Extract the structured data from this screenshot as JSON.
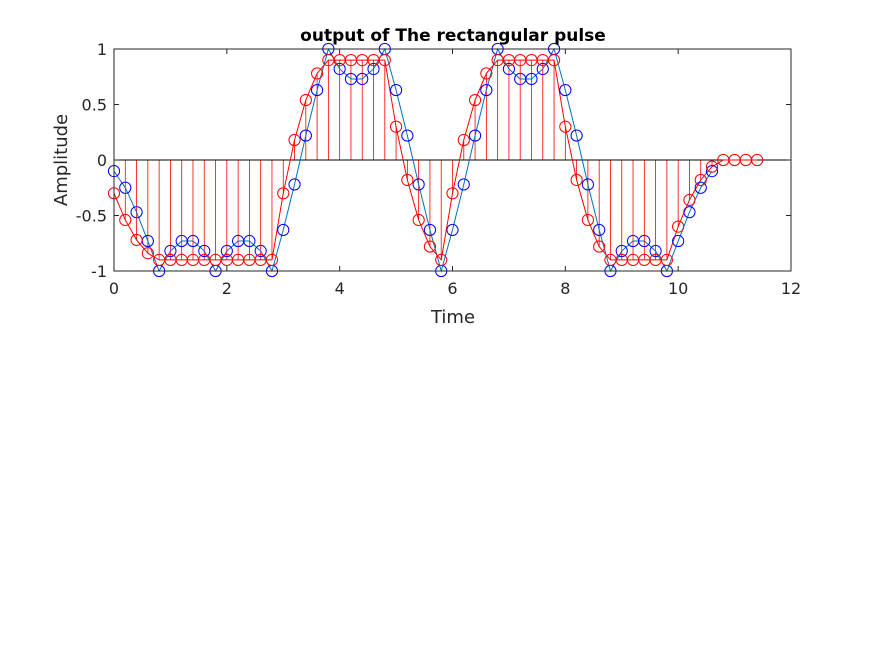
{
  "chart_data": {
    "type": "line",
    "title": "output of The rectangular pulse",
    "xlabel": "Time",
    "ylabel": "Amplitude",
    "xlim": [
      0,
      12
    ],
    "ylim": [
      -1,
      1
    ],
    "xticks": [
      "0",
      "2",
      "4",
      "6",
      "8",
      "10",
      "12"
    ],
    "yticks": [
      "-1",
      "-0.5",
      "0",
      "0.5",
      "1"
    ],
    "grid": false,
    "legend": "none",
    "series": [
      {
        "style": "line-with-circle-markers",
        "line_color": "#0072bd",
        "marker_color": "#0000ff",
        "x": [
          0,
          0.2,
          0.4,
          0.6,
          0.8,
          1.0,
          1.2,
          1.4,
          1.6,
          1.8,
          2.0,
          2.2,
          2.4,
          2.6,
          2.8,
          3.0,
          3.2,
          3.4,
          3.6,
          3.8,
          4.0,
          4.2,
          4.4,
          4.6,
          4.8,
          5.0,
          5.2,
          5.4,
          5.6,
          5.8,
          6.0,
          6.2,
          6.4,
          6.6,
          6.8,
          7.0,
          7.2,
          7.4,
          7.6,
          7.8,
          8.0,
          8.2,
          8.4,
          8.6,
          8.8,
          9.0,
          9.2,
          9.4,
          9.6,
          9.8,
          10.0,
          10.2,
          10.4,
          10.6
        ],
        "y": [
          -0.1,
          -0.25,
          -0.47,
          -0.73,
          -1.0,
          -0.82,
          -0.73,
          -0.73,
          -0.82,
          -1.0,
          -0.82,
          -0.73,
          -0.73,
          -0.82,
          -1.0,
          -0.63,
          -0.22,
          0.22,
          0.63,
          1.0,
          0.82,
          0.73,
          0.73,
          0.82,
          1.0,
          0.63,
          0.22,
          -0.22,
          -0.63,
          -1.0,
          -0.63,
          -0.22,
          0.22,
          0.63,
          1.0,
          0.82,
          0.73,
          0.73,
          0.82,
          1.0,
          0.63,
          0.22,
          -0.22,
          -0.63,
          -1.0,
          -0.82,
          -0.73,
          -0.73,
          -0.82,
          -1.0,
          -0.73,
          -0.47,
          -0.25,
          -0.1
        ]
      },
      {
        "style": "line-with-circle-markers-and-stems",
        "line_color": "#ff0000",
        "marker_color": "#ff0000",
        "x": [
          0,
          0.2,
          0.4,
          0.6,
          0.8,
          1.0,
          1.2,
          1.4,
          1.6,
          1.8,
          2.0,
          2.2,
          2.4,
          2.6,
          2.8,
          3.0,
          3.2,
          3.4,
          3.6,
          3.8,
          4.0,
          4.2,
          4.4,
          4.6,
          4.8,
          5.0,
          5.2,
          5.4,
          5.6,
          5.8,
          6.0,
          6.2,
          6.4,
          6.6,
          6.8,
          7.0,
          7.2,
          7.4,
          7.6,
          7.8,
          8.0,
          8.2,
          8.4,
          8.6,
          8.8,
          9.0,
          9.2,
          9.4,
          9.6,
          9.8,
          10.0,
          10.2,
          10.4,
          10.6,
          10.8,
          11.0,
          11.2,
          11.4
        ],
        "y": [
          -0.3,
          -0.54,
          -0.72,
          -0.84,
          -0.9,
          -0.9,
          -0.9,
          -0.9,
          -0.9,
          -0.9,
          -0.9,
          -0.9,
          -0.9,
          -0.9,
          -0.9,
          -0.3,
          0.18,
          0.54,
          0.78,
          0.9,
          0.9,
          0.9,
          0.9,
          0.9,
          0.9,
          0.3,
          -0.18,
          -0.54,
          -0.78,
          -0.9,
          -0.3,
          0.18,
          0.54,
          0.78,
          0.9,
          0.9,
          0.9,
          0.9,
          0.9,
          0.9,
          0.3,
          -0.18,
          -0.54,
          -0.78,
          -0.9,
          -0.9,
          -0.9,
          -0.9,
          -0.9,
          -0.9,
          -0.6,
          -0.36,
          -0.18,
          -0.06,
          0.0,
          0.0,
          0.0,
          0.0
        ]
      }
    ]
  }
}
